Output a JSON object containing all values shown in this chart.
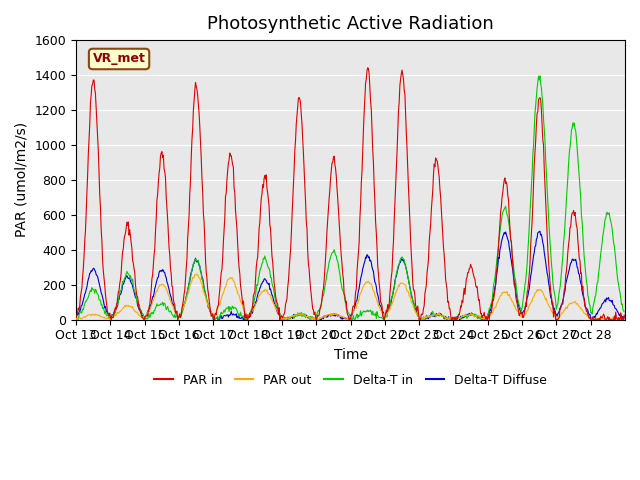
{
  "title": "Photosynthetic Active Radiation",
  "ylabel": "PAR (umol/m2/s)",
  "xlabel": "Time",
  "annotation": "VR_met",
  "ylim": [
    0,
    1600
  ],
  "background_color": "#e8e8e8",
  "line_colors": {
    "PAR_in": "#dd0000",
    "PAR_out": "#ffaa00",
    "DeltaT_in": "#00cc00",
    "DeltaT_Diffuse": "#0000cc"
  },
  "legend_labels": [
    "PAR in",
    "PAR out",
    "Delta-T in",
    "Delta-T Diffuse"
  ],
  "x_tick_labels": [
    "Oct 13",
    "Oct 14",
    "Oct 15",
    "Oct 16",
    "Oct 17",
    "Oct 18",
    "Oct 19",
    "Oct 20",
    "Oct 21",
    "Oct 22",
    "Oct 23",
    "Oct 24",
    "Oct 25",
    "Oct 26",
    "Oct 27",
    "Oct 28"
  ],
  "yticks": [
    0,
    200,
    400,
    600,
    800,
    1000,
    1200,
    1400,
    1600
  ],
  "title_fontsize": 13,
  "label_fontsize": 10,
  "tick_fontsize": 9,
  "par_in_heights": [
    1380,
    540,
    950,
    1340,
    950,
    830,
    1260,
    920,
    1440,
    1430,
    925,
    300,
    800,
    1270,
    620,
    10
  ],
  "par_out_heights": [
    30,
    80,
    200,
    260,
    240,
    170,
    30,
    30,
    220,
    210,
    30,
    30,
    160,
    170,
    100,
    5
  ],
  "delta_t_heights": [
    175,
    265,
    90,
    340,
    70,
    350,
    30,
    390,
    50,
    350,
    30,
    30,
    640,
    1390,
    1125,
    615
  ],
  "delta_d_heights": [
    290,
    245,
    285,
    340,
    30,
    230,
    30,
    30,
    365,
    345,
    30,
    30,
    500,
    500,
    350,
    120
  ]
}
